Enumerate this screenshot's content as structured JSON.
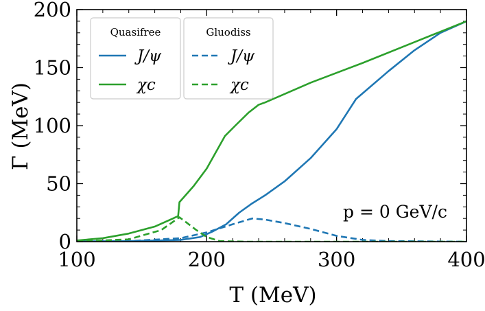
{
  "chart_data": {
    "type": "line",
    "xlabel": "T (MeV)",
    "ylabel": "Γ (MeV)",
    "xlim": [
      100,
      400
    ],
    "ylim": [
      0,
      200
    ],
    "xticks": [
      "100",
      "200",
      "300",
      "400"
    ],
    "yticks": [
      "0",
      "50",
      "100",
      "150",
      "200"
    ],
    "annotation": "p = 0 GeV/c",
    "colors": {
      "jpsi": "#1f77b4",
      "chic": "#2ca02c"
    },
    "legend": [
      {
        "title": "Quasifree",
        "entries": [
          {
            "label": "J/ψ",
            "series": "qf_jpsi"
          },
          {
            "label": "χc",
            "series": "qf_chic"
          }
        ]
      },
      {
        "title": "Gluodiss",
        "entries": [
          {
            "label": "J/ψ",
            "series": "gd_jpsi"
          },
          {
            "label": "χc",
            "series": "gd_chic"
          }
        ]
      }
    ],
    "series": [
      {
        "id": "qf_jpsi",
        "label": "J/ψ",
        "group": "Quasifree",
        "style": "solid",
        "color": "#1f77b4",
        "points": [
          [
            100,
            0.2
          ],
          [
            140,
            0.5
          ],
          [
            180,
            1.5
          ],
          [
            195,
            4
          ],
          [
            205,
            9
          ],
          [
            215,
            15
          ],
          [
            225,
            25
          ],
          [
            235,
            33
          ],
          [
            245,
            40
          ],
          [
            260,
            52
          ],
          [
            280,
            72
          ],
          [
            300,
            97
          ],
          [
            315,
            123
          ],
          [
            340,
            147
          ],
          [
            360,
            165
          ],
          [
            380,
            180
          ],
          [
            400,
            190
          ]
        ]
      },
      {
        "id": "qf_chic",
        "label": "χc",
        "group": "Quasifree",
        "style": "solid",
        "color": "#2ca02c",
        "points": [
          [
            100,
            1
          ],
          [
            120,
            3
          ],
          [
            140,
            7
          ],
          [
            160,
            13
          ],
          [
            178,
            22
          ],
          [
            179,
            34
          ],
          [
            190,
            48
          ],
          [
            200,
            63
          ],
          [
            214,
            91
          ],
          [
            222,
            100
          ],
          [
            232,
            111
          ],
          [
            240,
            118
          ],
          [
            245,
            120
          ],
          [
            280,
            137
          ],
          [
            320,
            154
          ],
          [
            360,
            172
          ],
          [
            400,
            190
          ]
        ]
      },
      {
        "id": "gd_jpsi",
        "label": "J/ψ",
        "group": "Gluodiss",
        "style": "dashed",
        "color": "#1f77b4",
        "points": [
          [
            100,
            0
          ],
          [
            140,
            0.5
          ],
          [
            180,
            3
          ],
          [
            200,
            8
          ],
          [
            220,
            15
          ],
          [
            235,
            20
          ],
          [
            245,
            19
          ],
          [
            260,
            16
          ],
          [
            280,
            11
          ],
          [
            300,
            5
          ],
          [
            320,
            1.5
          ],
          [
            340,
            0.5
          ],
          [
            400,
            0
          ]
        ]
      },
      {
        "id": "gd_chic",
        "label": "χc",
        "group": "Gluodiss",
        "style": "dashed",
        "color": "#2ca02c",
        "points": [
          [
            100,
            0.1
          ],
          [
            140,
            2
          ],
          [
            165,
            10
          ],
          [
            179,
            21
          ],
          [
            185,
            16
          ],
          [
            192,
            10
          ],
          [
            200,
            4
          ],
          [
            210,
            0.5
          ],
          [
            230,
            0
          ],
          [
            400,
            0
          ]
        ]
      }
    ]
  }
}
